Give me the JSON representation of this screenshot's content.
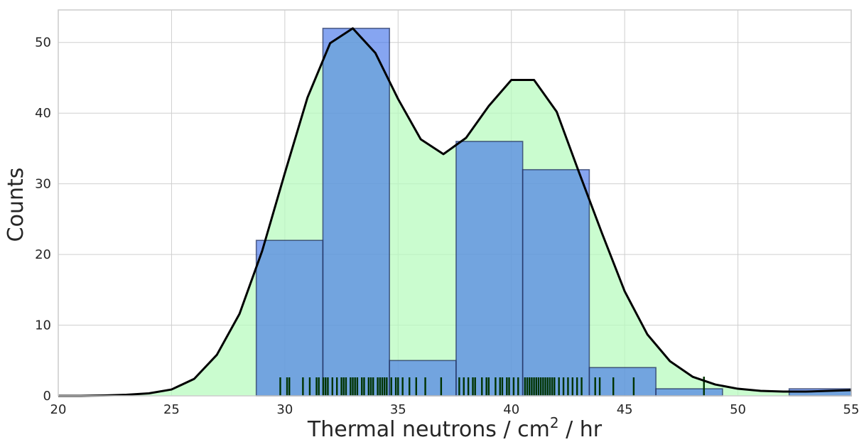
{
  "chart_data": {
    "type": "bar",
    "xlabel": "Thermal neutrons / cm",
    "xlabel_sup": "2",
    "xlabel_suffix": " / hr",
    "ylabel": "Counts",
    "xlim": [
      20,
      55
    ],
    "ylim": [
      0,
      54.6
    ],
    "xticks": [
      20,
      25,
      30,
      35,
      40,
      45,
      50,
      55
    ],
    "yticks": [
      0,
      10,
      20,
      30,
      40,
      50
    ],
    "grid": true,
    "colors": {
      "hist_fill": "#3c6ee8",
      "kde_fill": "#b8fbbf",
      "kde_line": "#000000",
      "rug": "#003300",
      "grid": "#cfcfcf",
      "frame": "#cccccc"
    },
    "series": [
      {
        "type": "histogram",
        "bin_edges": [
          28.74,
          31.68,
          34.62,
          37.56,
          40.5,
          43.44,
          46.38,
          49.32,
          52.26,
          55.2
        ],
        "counts": [
          22,
          52,
          5,
          36,
          32,
          4,
          1,
          0,
          1
        ]
      },
      {
        "type": "kde",
        "x": [
          20,
          21,
          22,
          23,
          24,
          25,
          26,
          27,
          28,
          29,
          30,
          31,
          32,
          33,
          34,
          35,
          36,
          37,
          38,
          39,
          40,
          41,
          42,
          43,
          44,
          45,
          46,
          47,
          48,
          49,
          50,
          51,
          52,
          53,
          54,
          55
        ],
        "y": [
          0,
          0,
          0.05,
          0.15,
          0.35,
          0.9,
          2.4,
          5.8,
          11.6,
          20.5,
          31.5,
          42.2,
          49.9,
          52.0,
          48.5,
          42.0,
          36.3,
          34.2,
          36.5,
          41.0,
          44.7,
          44.7,
          40.2,
          31.5,
          23.0,
          14.8,
          8.7,
          4.9,
          2.7,
          1.6,
          1.0,
          0.7,
          0.6,
          0.6,
          0.7,
          0.8
        ]
      },
      {
        "type": "rug",
        "values": [
          29.8,
          30.1,
          30.2,
          30.8,
          31.1,
          31.4,
          31.5,
          31.7,
          31.8,
          31.9,
          32.1,
          32.3,
          32.5,
          32.6,
          32.7,
          32.9,
          33.0,
          33.1,
          33.2,
          33.4,
          33.5,
          33.7,
          33.8,
          33.9,
          34.1,
          34.2,
          34.3,
          34.4,
          34.5,
          34.7,
          34.9,
          35.0,
          35.2,
          35.5,
          35.8,
          36.2,
          36.9,
          37.7,
          37.9,
          38.1,
          38.3,
          38.4,
          38.7,
          38.9,
          39.0,
          39.3,
          39.5,
          39.6,
          39.8,
          39.9,
          40.1,
          40.3,
          40.6,
          40.7,
          40.8,
          40.9,
          41.0,
          41.1,
          41.2,
          41.3,
          41.4,
          41.5,
          41.6,
          41.7,
          41.8,
          41.9,
          42.1,
          42.3,
          42.5,
          42.7,
          42.9,
          43.1,
          43.7,
          43.9,
          44.5,
          45.4,
          48.5
        ]
      }
    ]
  }
}
